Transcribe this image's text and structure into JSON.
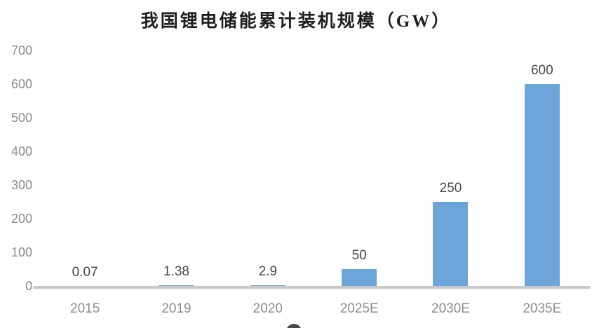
{
  "title": "我国锂电储能累计装机规模（GW）",
  "colors": {
    "bar": "#6ca5d9",
    "axis_line": "#c9c9c9",
    "tick_label": "#8c8c8c",
    "data_label": "#474747",
    "title": "#1f1f1f",
    "background": "#ffffff"
  },
  "chart_data": {
    "type": "bar",
    "title": "我国锂电储能累计装机规模（GW）",
    "categories": [
      "2015",
      "2019",
      "2020",
      "2025E",
      "2030E",
      "2035E"
    ],
    "values": [
      0.07,
      1.38,
      2.9,
      50,
      250,
      600
    ],
    "data_labels": [
      "0.07",
      "1.38",
      "2.9",
      "50",
      "250",
      "600"
    ],
    "xlabel": "",
    "ylabel": "",
    "ylim": [
      0,
      700
    ],
    "yticks": [
      0,
      100,
      200,
      300,
      400,
      500,
      600,
      700
    ],
    "grid": false,
    "legend_position": "none",
    "bar_color": "#6ca5d9"
  }
}
